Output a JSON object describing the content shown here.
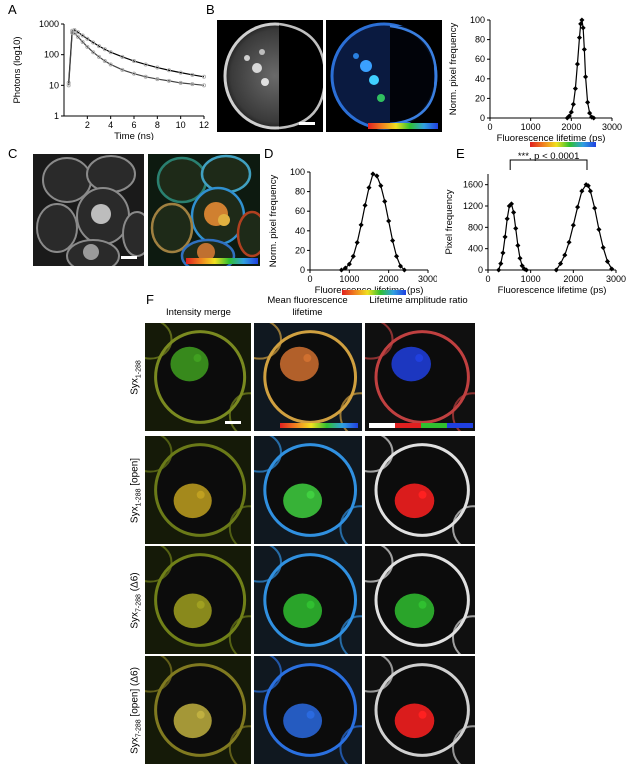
{
  "panels": {
    "A": {
      "label": "A",
      "chart_data": {
        "type": "scatter",
        "xlabel": "Time (ns)",
        "ylabel": "Photons (log10)",
        "scale_y": "log",
        "xlim": [
          0,
          12
        ],
        "ylim": [
          1,
          1000
        ],
        "x_ticks": [
          "2",
          "4",
          "6",
          "8",
          "10",
          "12"
        ],
        "y_ticks": [
          "1",
          "10",
          "100",
          "1000"
        ],
        "series": [
          {
            "x": [
              0.4,
              0.7,
              0.9,
              1.2,
              1.6,
              2,
              2.5,
              3,
              3.5,
              4,
              5,
              6,
              7,
              8,
              9,
              10,
              11,
              12
            ],
            "y": [
              12,
              600,
              640,
              540,
              420,
              330,
              250,
              190,
              150,
              120,
              85,
              62,
              48,
              38,
              31,
              26,
              22,
              19
            ]
          },
          {
            "x": [
              0.4,
              0.7,
              0.9,
              1.2,
              1.6,
              2,
              2.5,
              3,
              3.5,
              4,
              5,
              6,
              7,
              8,
              9,
              10,
              11,
              12
            ],
            "y": [
              10,
              520,
              500,
              380,
              260,
              180,
              120,
              85,
              62,
              48,
              32,
              24,
              19,
              16,
              14,
              12,
              11,
              10
            ]
          }
        ]
      }
    },
    "B": {
      "label": "B",
      "chart_data": {
        "type": "line",
        "xlabel": "Fluorescence lifetime (ps)",
        "ylabel": "Norm. pixel frequency",
        "xlim": [
          0,
          3000
        ],
        "ylim": [
          0,
          100
        ],
        "x_ticks": [
          "0",
          "1000",
          "2000",
          "3000"
        ],
        "y_ticks": [
          "0",
          "20",
          "40",
          "60",
          "80",
          "100"
        ],
        "x": [
          1900,
          1950,
          2000,
          2050,
          2100,
          2150,
          2200,
          2230,
          2260,
          2290,
          2320,
          2350,
          2400,
          2450,
          2500,
          2550
        ],
        "y": [
          0,
          2,
          6,
          14,
          30,
          55,
          82,
          96,
          100,
          92,
          70,
          42,
          16,
          5,
          1,
          0
        ]
      }
    },
    "C": {
      "label": "C"
    },
    "D": {
      "label": "D",
      "chart_data": {
        "type": "line",
        "xlabel": "Fluorescence lifetime (ps)",
        "ylabel": "Norm. pixel frequency",
        "xlim": [
          0,
          3000
        ],
        "ylim": [
          0,
          100
        ],
        "x_ticks": [
          "0",
          "1000",
          "2000",
          "3000"
        ],
        "y_ticks": [
          "0",
          "20",
          "40",
          "60",
          "80",
          "100"
        ],
        "x": [
          800,
          900,
          1000,
          1100,
          1200,
          1300,
          1400,
          1500,
          1600,
          1700,
          1800,
          1900,
          2000,
          2100,
          2200,
          2300,
          2400
        ],
        "y": [
          0,
          2,
          6,
          14,
          28,
          46,
          66,
          84,
          98,
          96,
          86,
          70,
          50,
          30,
          14,
          4,
          0
        ]
      }
    },
    "E": {
      "label": "E",
      "annotation": "***, p < 0.0001",
      "chart_data": {
        "type": "line",
        "xlabel": "Fluorescence lifetime (ps)",
        "ylabel": "Pixel frequency",
        "xlim": [
          0,
          3000
        ],
        "ylim": [
          0,
          1800
        ],
        "x_ticks": [
          "0",
          "1000",
          "2000",
          "3000"
        ],
        "y_ticks": [
          "0",
          "400",
          "800",
          "1200",
          "1600"
        ],
        "series": [
          {
            "x": [
              250,
              300,
              350,
              400,
              450,
              500,
              550,
              600,
              650,
              700,
              750,
              800,
              850,
              900
            ],
            "y": [
              0,
              120,
              320,
              620,
              960,
              1200,
              1240,
              1080,
              780,
              460,
              220,
              80,
              20,
              0
            ]
          },
          {
            "x": [
              1600,
              1700,
              1800,
              1900,
              2000,
              2100,
              2200,
              2300,
              2350,
              2400,
              2500,
              2600,
              2700,
              2800,
              2900
            ],
            "y": [
              0,
              120,
              280,
              520,
              840,
              1180,
              1480,
              1600,
              1580,
              1480,
              1160,
              760,
              420,
              160,
              20
            ]
          }
        ]
      }
    },
    "F": {
      "label": "F",
      "col_titles": [
        "Intensity merge",
        "Mean fluorescence lifetime",
        "Lifetime amplitude ratio"
      ],
      "rows": [
        {
          "name": "Syx",
          "sub": "1-288",
          "suffix": ""
        },
        {
          "name": "Syx",
          "sub": "1-288",
          "suffix": " [open]"
        },
        {
          "name": "Syx",
          "sub": "7-288",
          "suffix": " (Δ6)"
        },
        {
          "name": "Syx",
          "sub": "7-288",
          "suffix": " [open] (Δ6)"
        }
      ]
    }
  },
  "colors": {
    "lifetime_scale": [
      "#e02020",
      "#f08020",
      "#f0e020",
      "#30c030",
      "#30a0e0",
      "#2040e0"
    ],
    "ratio_scale": [
      "#ffffff",
      "#e02020",
      "#30c030",
      "#2040e0"
    ]
  }
}
